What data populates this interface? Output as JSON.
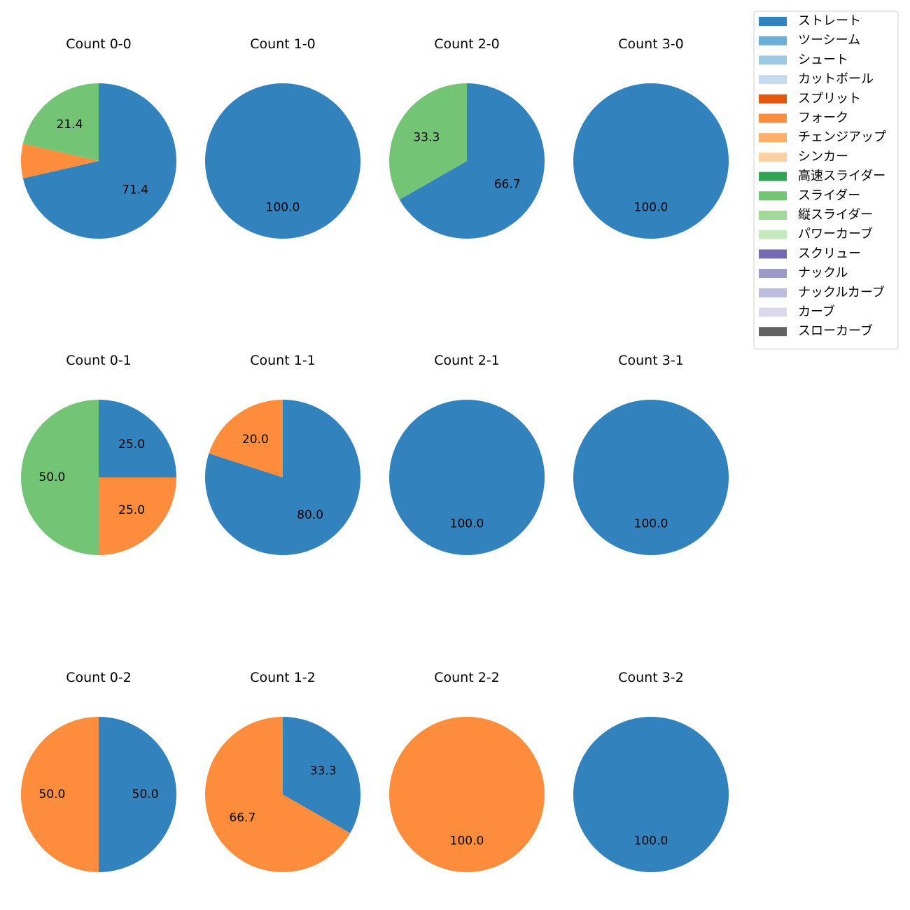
{
  "chart_data": {
    "type": "pie",
    "legend_position": "top-right",
    "pitch_types": [
      {
        "name": "ストレート",
        "color": "#3182bd"
      },
      {
        "name": "ツーシーム",
        "color": "#6baed6"
      },
      {
        "name": "シュート",
        "color": "#9ecae1"
      },
      {
        "name": "カットボール",
        "color": "#c6dbef"
      },
      {
        "name": "スプリット",
        "color": "#e6550d"
      },
      {
        "name": "フォーク",
        "color": "#fd8d3c"
      },
      {
        "name": "チェンジアップ",
        "color": "#fdae6b"
      },
      {
        "name": "シンカー",
        "color": "#fdd0a2"
      },
      {
        "name": "高速スライダー",
        "color": "#31a354"
      },
      {
        "name": "スライダー",
        "color": "#74c476"
      },
      {
        "name": "縦スライダー",
        "color": "#a1d99b"
      },
      {
        "name": "パワーカーブ",
        "color": "#c7e9c0"
      },
      {
        "name": "スクリュー",
        "color": "#756bb1"
      },
      {
        "name": "ナックル",
        "color": "#9e9ac8"
      },
      {
        "name": "ナックルカーブ",
        "color": "#bcbddc"
      },
      {
        "name": "カーブ",
        "color": "#dadaeb"
      },
      {
        "name": "スローカーブ",
        "color": "#636363"
      }
    ],
    "charts": [
      {
        "title": "Count 0-0",
        "slices": [
          {
            "pitch": "ストレート",
            "value": 71.4,
            "label": "71.4"
          },
          {
            "pitch": "フォーク",
            "value": 7.2,
            "label": ""
          },
          {
            "pitch": "スライダー",
            "value": 21.4,
            "label": "21.4"
          }
        ]
      },
      {
        "title": "Count 1-0",
        "slices": [
          {
            "pitch": "ストレート",
            "value": 100.0,
            "label": "100.0"
          }
        ]
      },
      {
        "title": "Count 2-0",
        "slices": [
          {
            "pitch": "ストレート",
            "value": 66.7,
            "label": "66.7"
          },
          {
            "pitch": "スライダー",
            "value": 33.3,
            "label": "33.3"
          }
        ]
      },
      {
        "title": "Count 3-0",
        "slices": [
          {
            "pitch": "ストレート",
            "value": 100.0,
            "label": "100.0"
          }
        ]
      },
      {
        "title": "Count 0-1",
        "slices": [
          {
            "pitch": "ストレート",
            "value": 25.0,
            "label": "25.0"
          },
          {
            "pitch": "フォーク",
            "value": 25.0,
            "label": "25.0"
          },
          {
            "pitch": "スライダー",
            "value": 50.0,
            "label": "50.0"
          }
        ]
      },
      {
        "title": "Count 1-1",
        "slices": [
          {
            "pitch": "ストレート",
            "value": 80.0,
            "label": "80.0"
          },
          {
            "pitch": "フォーク",
            "value": 20.0,
            "label": "20.0"
          }
        ]
      },
      {
        "title": "Count 2-1",
        "slices": [
          {
            "pitch": "ストレート",
            "value": 100.0,
            "label": "100.0"
          }
        ]
      },
      {
        "title": "Count 3-1",
        "slices": [
          {
            "pitch": "ストレート",
            "value": 100.0,
            "label": "100.0"
          }
        ]
      },
      {
        "title": "Count 0-2",
        "slices": [
          {
            "pitch": "ストレート",
            "value": 50.0,
            "label": "50.0"
          },
          {
            "pitch": "フォーク",
            "value": 50.0,
            "label": "50.0"
          }
        ]
      },
      {
        "title": "Count 1-2",
        "slices": [
          {
            "pitch": "ストレート",
            "value": 33.3,
            "label": "33.3"
          },
          {
            "pitch": "フォーク",
            "value": 66.7,
            "label": "66.7"
          }
        ]
      },
      {
        "title": "Count 2-2",
        "slices": [
          {
            "pitch": "フォーク",
            "value": 100.0,
            "label": "100.0"
          }
        ]
      },
      {
        "title": "Count 3-2",
        "slices": [
          {
            "pitch": "ストレート",
            "value": 100.0,
            "label": "100.0"
          }
        ]
      }
    ]
  }
}
